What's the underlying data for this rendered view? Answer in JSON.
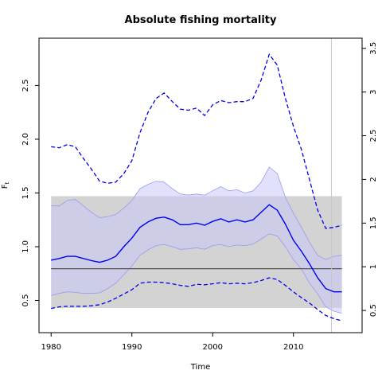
{
  "chart_data": {
    "type": "line",
    "title": "Absolute fishing mortality",
    "xlabel": "Time",
    "ylabel": "F",
    "ylabel_subscript": "t",
    "xlim": [
      1978.5,
      2018.5
    ],
    "ylim": [
      0.2,
      2.94
    ],
    "x_ticks": [
      1980,
      1990,
      2000,
      2010
    ],
    "y_ticks": [
      0.5,
      1.0,
      1.5,
      2.0,
      2.5
    ],
    "y_tick_labels": [
      "0.5",
      "1.0",
      "1.5",
      "2.0",
      "2.5"
    ],
    "right_axis_ticks": [
      0.5,
      1,
      1.5,
      2,
      2.5,
      3,
      3.5
    ],
    "right_axis_tick_labels": [
      "0.5",
      "1",
      "1.5",
      "2",
      "2.5",
      "3",
      "3.5"
    ],
    "right_axis_scale": 1.23,
    "reference": {
      "fmsy": 0.795,
      "fmsy_ci_low": 0.43,
      "fmsy_ci_high": 1.47
    },
    "last_observation_x": 2014.7,
    "colors": {
      "estimate": "#0000ee",
      "ci_fill": "#c8c8f8",
      "ci_border": "#9a9af0",
      "reference_band": "#d3d3d3",
      "reference_line": "#555555",
      "vertical_line": "#c8c8c8"
    },
    "x": [
      1980,
      1981,
      1982,
      1983,
      1984,
      1985,
      1986,
      1987,
      1988,
      1989,
      1990,
      1991,
      1992,
      1993,
      1994,
      1995,
      1996,
      1997,
      1998,
      1999,
      2000,
      2001,
      2002,
      2003,
      2004,
      2005,
      2006,
      2007,
      2008,
      2009,
      2010,
      2011,
      2012,
      2013,
      2014,
      2015,
      2016
    ],
    "series": [
      {
        "role": "estimate",
        "values": [
          0.875,
          0.89,
          0.91,
          0.91,
          0.89,
          0.87,
          0.855,
          0.875,
          0.91,
          1.0,
          1.08,
          1.18,
          1.23,
          1.265,
          1.275,
          1.25,
          1.205,
          1.205,
          1.22,
          1.2,
          1.235,
          1.26,
          1.23,
          1.25,
          1.23,
          1.25,
          1.32,
          1.39,
          1.34,
          1.21,
          1.06,
          0.955,
          0.84,
          0.71,
          0.61,
          0.58,
          0.58
        ]
      },
      {
        "role": "ci_lower",
        "values": [
          0.545,
          0.565,
          0.58,
          0.575,
          0.565,
          0.565,
          0.57,
          0.61,
          0.66,
          0.74,
          0.82,
          0.92,
          0.97,
          1.01,
          1.02,
          1.0,
          0.975,
          0.98,
          0.99,
          0.975,
          1.01,
          1.02,
          1.0,
          1.015,
          1.01,
          1.025,
          1.07,
          1.12,
          1.1,
          1.0,
          0.88,
          0.79,
          0.66,
          0.56,
          0.44,
          0.4,
          0.38
        ]
      },
      {
        "role": "ci_upper",
        "values": [
          1.38,
          1.38,
          1.43,
          1.44,
          1.38,
          1.32,
          1.27,
          1.28,
          1.3,
          1.36,
          1.43,
          1.54,
          1.58,
          1.61,
          1.6,
          1.54,
          1.49,
          1.48,
          1.49,
          1.48,
          1.52,
          1.56,
          1.52,
          1.53,
          1.5,
          1.52,
          1.6,
          1.74,
          1.68,
          1.46,
          1.31,
          1.18,
          1.04,
          0.92,
          0.88,
          0.91,
          0.92
        ]
      },
      {
        "role": "ci_lower_dashed",
        "values": [
          0.425,
          0.44,
          0.445,
          0.445,
          0.445,
          0.45,
          0.46,
          0.485,
          0.52,
          0.56,
          0.6,
          0.66,
          0.67,
          0.67,
          0.665,
          0.655,
          0.64,
          0.63,
          0.65,
          0.645,
          0.655,
          0.665,
          0.655,
          0.66,
          0.655,
          0.665,
          0.685,
          0.71,
          0.695,
          0.64,
          0.58,
          0.525,
          0.475,
          0.415,
          0.36,
          0.33,
          0.31
        ]
      },
      {
        "role": "ci_upper_dashed",
        "values": [
          1.93,
          1.92,
          1.95,
          1.93,
          1.82,
          1.72,
          1.61,
          1.59,
          1.6,
          1.68,
          1.8,
          2.06,
          2.25,
          2.38,
          2.43,
          2.35,
          2.28,
          2.27,
          2.29,
          2.22,
          2.32,
          2.36,
          2.34,
          2.35,
          2.35,
          2.38,
          2.55,
          2.79,
          2.69,
          2.38,
          2.12,
          1.9,
          1.62,
          1.34,
          1.17,
          1.18,
          1.2
        ]
      }
    ]
  }
}
